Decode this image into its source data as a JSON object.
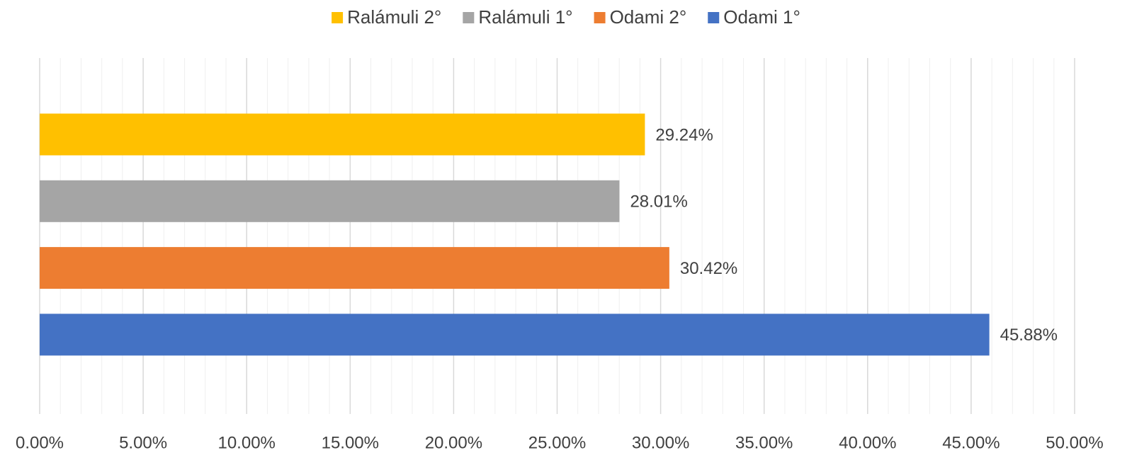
{
  "chart_data": {
    "type": "bar",
    "orientation": "horizontal",
    "categories": [
      null
    ],
    "series": [
      {
        "name": "Ralámuli 2°",
        "color": "#FFC000",
        "values": [
          29.24
        ],
        "value_labels": [
          "29.24%"
        ]
      },
      {
        "name": "Ralámuli 1°",
        "color": "#A5A5A5",
        "values": [
          28.01
        ],
        "value_labels": [
          "28.01%"
        ]
      },
      {
        "name": "Odami 2°",
        "color": "#ED7D31",
        "values": [
          30.42
        ],
        "value_labels": [
          "30.42%"
        ]
      },
      {
        "name": "Odami 1°",
        "color": "#4472C4",
        "values": [
          45.88
        ],
        "value_labels": [
          "45.88%"
        ]
      }
    ],
    "xlim": [
      0,
      50
    ],
    "xticks": [
      {
        "value": 0,
        "label": "0.00%"
      },
      {
        "value": 5,
        "label": "5.00%"
      },
      {
        "value": 10,
        "label": "10.00%"
      },
      {
        "value": 15,
        "label": "15.00%"
      },
      {
        "value": 20,
        "label": "20.00%"
      },
      {
        "value": 25,
        "label": "25.00%"
      },
      {
        "value": 30,
        "label": "30.00%"
      },
      {
        "value": 35,
        "label": "35.00%"
      },
      {
        "value": 40,
        "label": "40.00%"
      },
      {
        "value": 45,
        "label": "45.00%"
      },
      {
        "value": 50,
        "label": "50.00%"
      }
    ],
    "grid": true,
    "legend": "top"
  }
}
